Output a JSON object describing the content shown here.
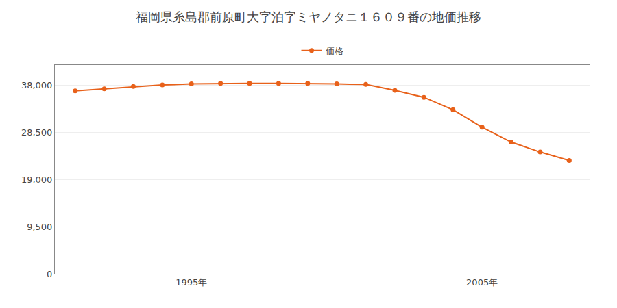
{
  "chart_data": {
    "type": "line",
    "title": "福岡県糸島郡前原町大字泊字ミヤノタニ１６０９番の地価推移",
    "x": [
      1991,
      1992,
      1993,
      1994,
      1995,
      1996,
      1997,
      1998,
      1999,
      2000,
      2001,
      2002,
      2003,
      2004,
      2005,
      2006,
      2007,
      2008
    ],
    "series": [
      {
        "name": "価格",
        "color": "#E8611A",
        "marker": "circle",
        "values": [
          36800,
          37200,
          37700,
          38000,
          38200,
          38300,
          38300,
          38300,
          38300,
          38200,
          38100,
          36900,
          35500,
          33000,
          29500,
          26500,
          24500,
          22800
        ]
      }
    ],
    "xlim": [
      1990.3,
      2008.7
    ],
    "xticks": [
      {
        "value": 1995,
        "label": "1995年"
      },
      {
        "value": 2005,
        "label": "2005年"
      }
    ],
    "ylim": [
      0,
      42000
    ],
    "yticks": [
      0,
      {
        "value": 9500,
        "label": "9,500"
      },
      {
        "value": 19000,
        "label": "19,000"
      },
      {
        "value": 28500,
        "label": "28,500"
      },
      {
        "value": 38000,
        "label": "38,000"
      }
    ],
    "grid": "y",
    "legend": "top"
  }
}
